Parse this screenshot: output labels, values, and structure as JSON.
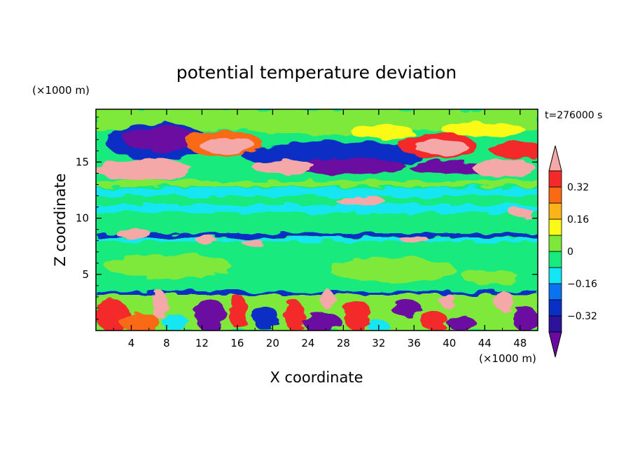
{
  "chart_data": {
    "type": "heatmap",
    "title": "potential temperature deviation",
    "xlabel": "X coordinate",
    "ylabel": "Z coordinate",
    "x_unit": "(×1000 m)",
    "y_unit": "(×1000 m)",
    "time_label": "t=276000 s",
    "xlim": [
      0,
      50
    ],
    "ylim": [
      0,
      19.7
    ],
    "x_ticks": [
      4,
      8,
      12,
      16,
      20,
      24,
      28,
      32,
      36,
      40,
      44,
      48
    ],
    "y_ticks": [
      5,
      10,
      15
    ],
    "colorbar": {
      "ticks": [
        "0.32",
        "0.16",
        "0",
        "−0.16",
        "−0.32"
      ],
      "tick_values": [
        0.32,
        0.16,
        0,
        -0.16,
        -0.32
      ],
      "levels": [
        -0.4,
        -0.32,
        -0.24,
        -0.16,
        -0.08,
        0,
        0.08,
        0.16,
        0.24,
        0.32,
        0.4
      ],
      "colors": [
        "#6a0aa0",
        "#2c139a",
        "#0a2fc4",
        "#0a73f0",
        "#12e6f2",
        "#18ea7e",
        "#7ee83a",
        "#fafa16",
        "#fab41a",
        "#fa6a14",
        "#f42a2a",
        "#f4a8a8"
      ]
    },
    "bands": [
      {
        "z": [
          0,
          3.4
        ],
        "character": "turbulent mixed layer, strong positive and negative cells"
      },
      {
        "z": [
          3.4,
          3.6
        ],
        "value": -0.3
      },
      {
        "z": [
          3.6,
          8.2
        ],
        "value": 0.02
      },
      {
        "z": [
          8.2,
          8.6
        ],
        "value": -0.3
      },
      {
        "z": [
          8.6,
          10.5
        ],
        "value": 0.03
      },
      {
        "z": [
          10.5,
          12.5
        ],
        "value": -0.06
      },
      {
        "z": [
          12.5,
          13.3
        ],
        "value": 0.04
      },
      {
        "z": [
          13.3,
          16.5
        ],
        "value": "mixed, positive patches"
      },
      {
        "z": [
          16.5,
          18.5
        ],
        "value": "alternating positive/negative cells"
      },
      {
        "z": [
          18.5,
          19.7
        ],
        "value": 0.04
      }
    ]
  }
}
